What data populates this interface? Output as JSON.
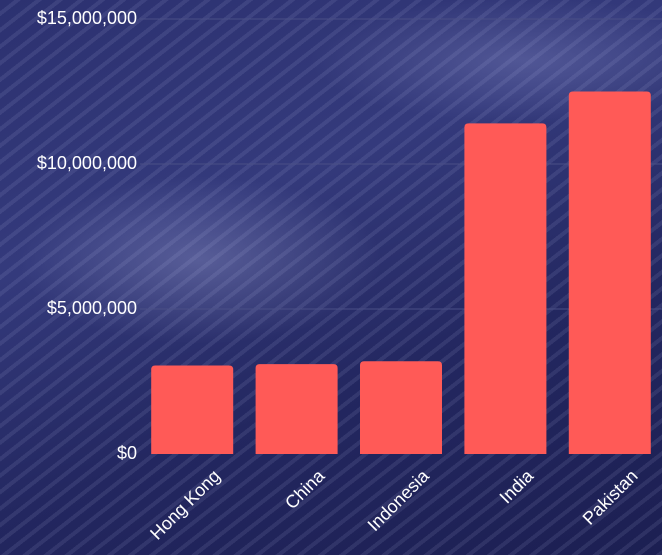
{
  "chart_data": {
    "type": "bar",
    "categories": [
      "Hong Kong",
      "China",
      "Indonesia",
      "India",
      "Pakistan"
    ],
    "values": [
      3050000,
      3100000,
      3200000,
      11400000,
      12500000
    ],
    "ylim": [
      0,
      15000000
    ],
    "yticks": [
      "$0",
      "$5,000,000",
      "$10,000,000",
      "$15,000,000"
    ],
    "ytick_values": [
      0,
      5000000,
      10000000,
      15000000
    ],
    "grid": true,
    "colors": {
      "bar": "#ff5a57",
      "text": "#ffffff",
      "grid": "#4a4f86"
    }
  }
}
